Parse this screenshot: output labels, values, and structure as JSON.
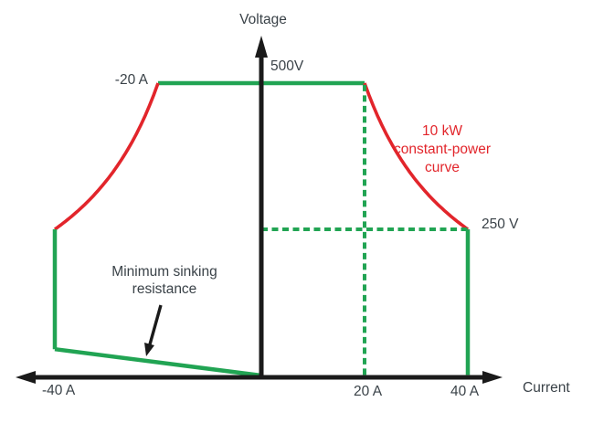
{
  "figure": {
    "description": "Voltage-current operating envelope with 10 kW constant-power curve and minimum sinking resistance limit"
  },
  "colors": {
    "envelope_green": "#21A453",
    "power_red": "#E2252B",
    "axis_black": "#1A1A1A",
    "text": "#3A4248"
  },
  "labels": {
    "voltage_axis": "Voltage",
    "current_axis": "Current",
    "v_500": "500V",
    "v_250": "250 V",
    "i_neg20": "-20 A",
    "i_neg40": "-40 A",
    "i_20": "20 A",
    "i_40": "40 A",
    "power_curve": "10 kW\nconstant-power\ncurve",
    "min_sink": "Minimum sinking\nresistance"
  },
  "chart_data": {
    "type": "line",
    "title": "",
    "xlabel": "Current",
    "ylabel": "Voltage",
    "x_unit": "A",
    "y_unit": "V",
    "xlim": [
      -47,
      47
    ],
    "ylim": [
      0,
      580
    ],
    "grid": false,
    "legend": "none",
    "x_tick_labels": [
      "-40 A",
      "20 A",
      "40 A"
    ],
    "x_tick_values": [
      -40,
      20,
      40
    ],
    "y_ref_labels": [
      "500V",
      "250 V"
    ],
    "y_ref_values": [
      500,
      250
    ],
    "constant_power_w": 10000,
    "max_voltage_v": 500,
    "max_current_a": 40,
    "max_sink_current_a": -40,
    "min_sink_resistance_v_at_neg40a": 45,
    "series": [
      {
        "name": "max-voltage-limit",
        "color": "#21A453",
        "style": "solid",
        "width": 4.5,
        "points": [
          [
            -20,
            500
          ],
          [
            20,
            500
          ]
        ]
      },
      {
        "name": "constant-power-curve-source",
        "color": "#E2252B",
        "style": "solid",
        "width": 3.6,
        "curve": "hyperbola",
        "power_w": 10000,
        "i_range": [
          20,
          40
        ]
      },
      {
        "name": "constant-power-curve-sink",
        "color": "#E2252B",
        "style": "solid",
        "width": 3.6,
        "curve": "hyperbola",
        "power_w": 10000,
        "i_range": [
          -40,
          -20
        ]
      },
      {
        "name": "max-current-limit",
        "color": "#21A453",
        "style": "solid",
        "width": 4.5,
        "points": [
          [
            40,
            250
          ],
          [
            40,
            1
          ]
        ]
      },
      {
        "name": "max-sink-current-limit",
        "color": "#21A453",
        "style": "solid",
        "width": 4.5,
        "points": [
          [
            -40,
            250
          ],
          [
            -40,
            45
          ]
        ]
      },
      {
        "name": "minimum-sinking-resistance-line",
        "color": "#21A453",
        "style": "solid",
        "width": 4.5,
        "points": [
          [
            -40,
            45
          ],
          [
            0,
            0
          ]
        ]
      },
      {
        "name": "reference-20a-dashed",
        "color": "#21A453",
        "style": "dashed",
        "width": 4.0,
        "points": [
          [
            20,
            497
          ],
          [
            20,
            0
          ]
        ]
      },
      {
        "name": "reference-250v-dashed",
        "color": "#21A453",
        "style": "dashed",
        "width": 4.0,
        "points": [
          [
            0,
            250
          ],
          [
            40,
            250
          ]
        ]
      }
    ],
    "annotations": [
      {
        "text": "10 kW\nconstant-power\ncurve",
        "color": "#E2252B",
        "at": "right of source curve"
      },
      {
        "text": "Minimum sinking\nresistance",
        "color": "#3A4248",
        "at": "arrow pointing to sinking resistance line"
      },
      {
        "text": "-20 A",
        "at": "left end of 500V line"
      },
      {
        "text": "250 V",
        "at": "right of 40A limit top"
      }
    ]
  }
}
